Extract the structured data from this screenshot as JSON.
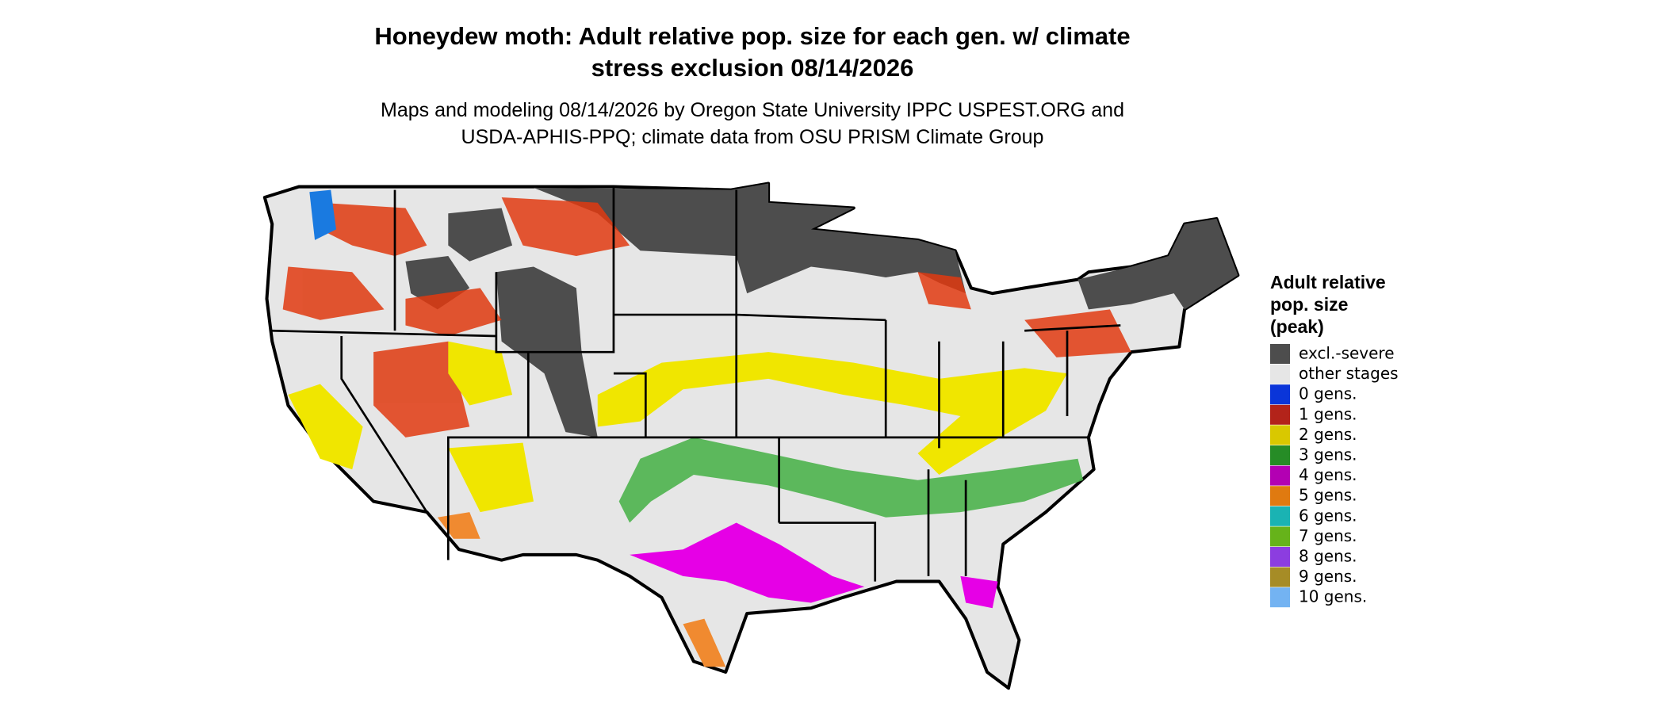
{
  "title": [
    "Honeydew moth: Adult relative pop. size for each gen. w/ climate",
    "stress exclusion 08/14/2026"
  ],
  "subtitle": [
    "Maps and modeling 08/14/2026 by Oregon State University IPPC USPEST.ORG and",
    "USDA-APHIS-PPQ; climate data from OSU PRISM Climate Group"
  ],
  "legend": {
    "title": [
      "Adult relative",
      "pop. size",
      "(peak)"
    ],
    "items": [
      {
        "label": "excl.-severe",
        "color": "#4d4d4d"
      },
      {
        "label": "other stages",
        "color": "#e6e6e6"
      },
      {
        "label": "0 gens.",
        "color": "#0a35d9"
      },
      {
        "label": "1 gens.",
        "color": "#b3231a"
      },
      {
        "label": "2 gens.",
        "color": "#d9c800"
      },
      {
        "label": "3 gens.",
        "color": "#268c26"
      },
      {
        "label": "4 gens.",
        "color": "#b300b3"
      },
      {
        "label": "5 gens.",
        "color": "#e07a10"
      },
      {
        "label": "6 gens.",
        "color": "#1ab3b3"
      },
      {
        "label": "7 gens.",
        "color": "#66b31a"
      },
      {
        "label": "8 gens.",
        "color": "#8c3de0"
      },
      {
        "label": "9 gens.",
        "color": "#a68c26"
      },
      {
        "label": "10 gens.",
        "color": "#73b3f2"
      }
    ]
  }
}
